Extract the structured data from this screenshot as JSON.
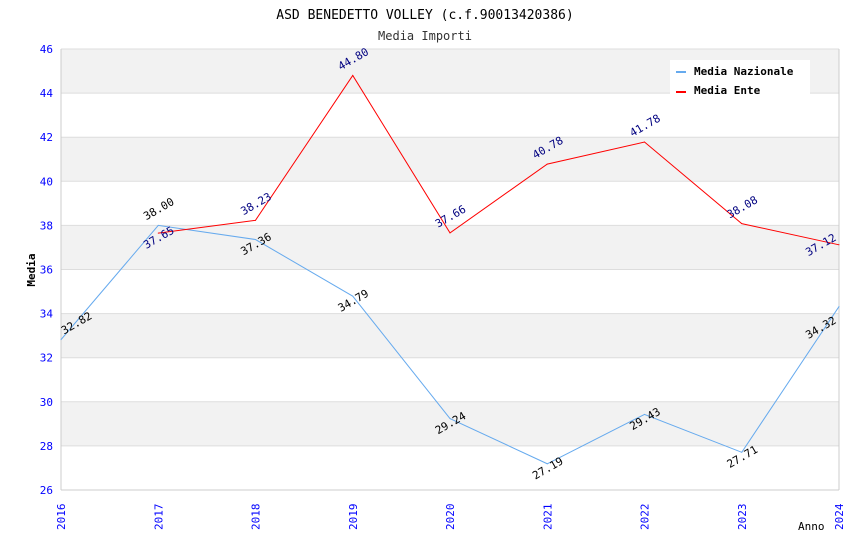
{
  "chart_data": {
    "type": "line",
    "title": "ASD BENEDETTO VOLLEY (c.f.90013420386)",
    "subtitle": "Media Importi",
    "xlabel": "Anno",
    "ylabel": "Media",
    "x": [
      "2016",
      "2017",
      "2018",
      "2019",
      "2020",
      "2021",
      "2022",
      "2023",
      "2024"
    ],
    "ylim": [
      26,
      46
    ],
    "yticks": [
      "26",
      "28",
      "30",
      "32",
      "34",
      "36",
      "38",
      "40",
      "42",
      "44",
      "46"
    ],
    "grid": true,
    "legend_position": "top-right",
    "series": [
      {
        "name": "Media Nazionale",
        "color": "#66aaee",
        "label_color": "#000000",
        "values": [
          32.82,
          38.0,
          37.36,
          34.79,
          29.24,
          27.19,
          29.43,
          27.71,
          34.32
        ],
        "labels": [
          "32.82",
          "38.00",
          "37.36",
          "34.79",
          "29.24",
          "27.19",
          "29.43",
          "27.71",
          "34.32"
        ]
      },
      {
        "name": "Media Ente",
        "color": "#ff0000",
        "label_color": "#000080",
        "values": [
          null,
          37.65,
          38.23,
          44.8,
          37.66,
          40.78,
          41.78,
          38.08,
          37.12
        ],
        "labels": [
          null,
          "37.65",
          "38.23",
          "44.80",
          "37.66",
          "40.78",
          "41.78",
          "38.08",
          "37.12"
        ]
      }
    ]
  }
}
